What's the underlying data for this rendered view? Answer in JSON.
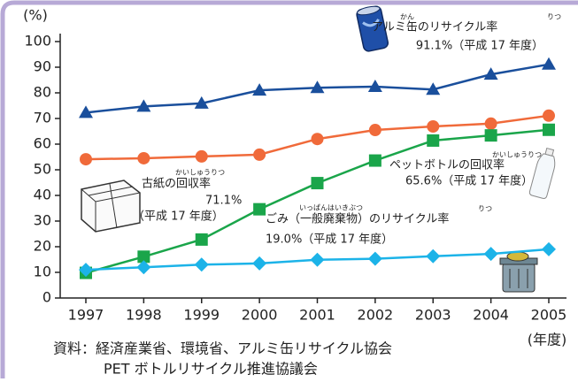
{
  "chart_data": {
    "type": "line",
    "ylabel": "(%)",
    "xlabel": "(年度)",
    "categories": [
      "1997",
      "1998",
      "1999",
      "2000",
      "2001",
      "2002",
      "2003",
      "2004",
      "2005"
    ],
    "ylim": [
      0,
      100
    ],
    "yticks": [
      0,
      10,
      20,
      30,
      40,
      50,
      60,
      70,
      80,
      90,
      100
    ],
    "series": [
      {
        "name": "アルミ缶のリサイクル率",
        "ruby": [
          "かん",
          "りつ"
        ],
        "note": [
          "91.1%（平成 17 年度）"
        ],
        "color": "#1a4f9c",
        "marker": "triangle",
        "values": [
          72.3,
          74.7,
          75.9,
          81.0,
          82.0,
          82.4,
          81.3,
          87.2,
          91.1
        ]
      },
      {
        "name": "古紙の回収率",
        "ruby": [
          "かいしゅうりつ"
        ],
        "note": [
          "71.1%",
          "（平成 17 年度）"
        ],
        "color": "#f06a3a",
        "marker": "circle",
        "values": [
          54.1,
          54.5,
          55.2,
          55.9,
          62.0,
          65.5,
          66.9,
          68.0,
          71.1
        ]
      },
      {
        "name": "ペットボトルの回収率",
        "ruby": [
          "かいしゅうりつ"
        ],
        "note": [
          "65.6%（平成 17 年度）"
        ],
        "color": "#1aa54a",
        "marker": "square",
        "values": [
          9.8,
          16.1,
          22.8,
          34.6,
          44.8,
          53.6,
          61.4,
          63.4,
          65.6
        ]
      },
      {
        "name": "ごみ（一般廃棄物）のリサイクル率",
        "ruby": [
          "いっぱんはいきぶつ",
          "りつ"
        ],
        "note": [
          "19.0%（平成 17 年度）"
        ],
        "color": "#1cb3e8",
        "marker": "diamond",
        "values": [
          11.0,
          12.0,
          13.0,
          13.5,
          14.9,
          15.3,
          16.3,
          17.2,
          19.0
        ]
      }
    ],
    "source": [
      "資料：経済産業省、環境省、アルミ缶リサイクル協会",
      "PET ボトルリサイクル推進協議会"
    ]
  }
}
